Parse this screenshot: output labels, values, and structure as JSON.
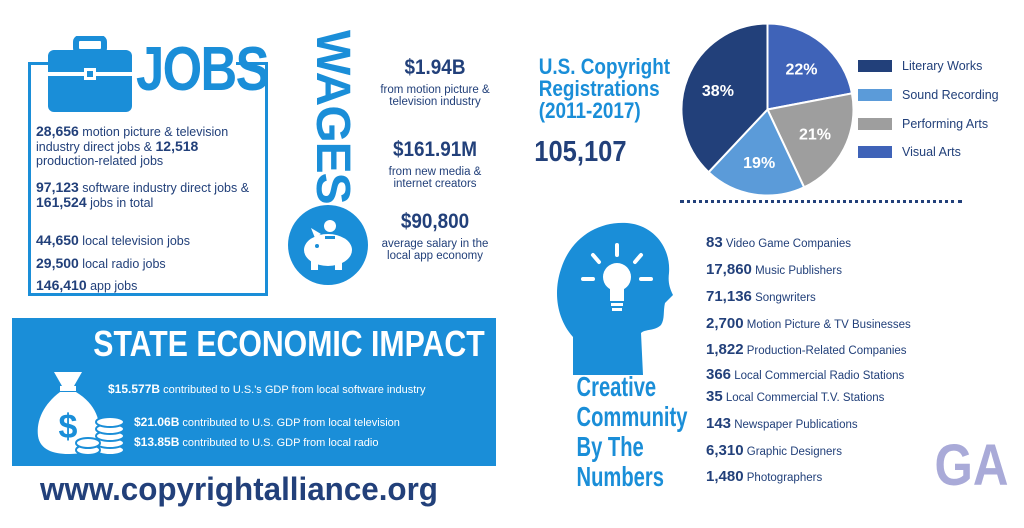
{
  "jobs": {
    "title": "JOBS",
    "items": [
      {
        "value": "28,656",
        "text": " motion picture & television industry direct jobs & "
      },
      {
        "value": "12,518",
        "text": " production-related jobs"
      },
      {
        "value": "97,123",
        "text": " software industry direct jobs & "
      },
      {
        "value": "161,524",
        "text": " jobs in total"
      },
      {
        "value": "44,650",
        "text": " local television jobs"
      },
      {
        "value": "29,500",
        "text": " local radio jobs"
      },
      {
        "value": "146,410",
        "text": " app jobs"
      }
    ]
  },
  "wages": {
    "title": "WAGES",
    "items": [
      {
        "value": "$1.94B",
        "desc": "from motion picture & television industry"
      },
      {
        "value": "$161.91M",
        "desc": "from new media & internet creators"
      },
      {
        "value": "$90,800",
        "desc": "average salary in the local app economy"
      }
    ]
  },
  "copyright": {
    "title_lines": [
      "U.S. Copyright",
      "Registrations",
      "(2011-2017)"
    ],
    "total": "105,107"
  },
  "chart_data": {
    "type": "pie",
    "title": "",
    "slices": [
      {
        "label": "Literary Works",
        "value": 38,
        "display": "38%",
        "color": "#22407a"
      },
      {
        "label": "Sound Recording",
        "value": 19,
        "display": "19%",
        "color": "#5b9bd9"
      },
      {
        "label": "Performing Arts",
        "value": 21,
        "display": "21%",
        "color": "#9e9e9e"
      },
      {
        "label": "Visual Arts",
        "value": 22,
        "display": "22%",
        "color": "#3f63b8"
      }
    ],
    "legend_order": [
      "Literary Works",
      "Sound Recording",
      "Performing Arts",
      "Visual Arts"
    ],
    "legend_position": "right"
  },
  "creative": {
    "title_lines": [
      "Creative",
      "Community",
      "By The",
      "Numbers"
    ],
    "items": [
      {
        "value": "83",
        "label": "Video Game Companies"
      },
      {
        "value": "17,860",
        "label": "Music Publishers"
      },
      {
        "value": "71,136",
        "label": "Songwriters"
      },
      {
        "value": "2,700",
        "label": "Motion Picture & TV Businesses"
      },
      {
        "value": "1,822",
        "label": "Production-Related Companies"
      },
      {
        "value": "366",
        "label": "Local Commercial Radio Stations"
      },
      {
        "value": "35",
        "label": "Local Commercial T.V. Stations"
      },
      {
        "value": "143",
        "label": "Newspaper Publications"
      },
      {
        "value": "6,310",
        "label": "Graphic Designers"
      },
      {
        "value": "1,480",
        "label": "Photographers"
      }
    ]
  },
  "state_label": "GA",
  "economic": {
    "title": "STATE ECONOMIC IMPACT",
    "items": [
      {
        "value": "$15.577B",
        "text": " contributed to U.S.'s GDP from local software industry"
      },
      {
        "value": "$21.06B",
        "text": " contributed to U.S. GDP from local television"
      },
      {
        "value": "$13.85B",
        "text": " contributed to U.S. GDP from local radio"
      }
    ]
  },
  "url": "www.copyrightalliance.org",
  "colors": {
    "accent": "#1a8ed8",
    "navy": "#22407a",
    "state": "#a9aad8"
  },
  "icons": [
    "briefcase-icon",
    "piggy-bank-icon",
    "lightbulb-head-icon",
    "money-bag-icon"
  ]
}
